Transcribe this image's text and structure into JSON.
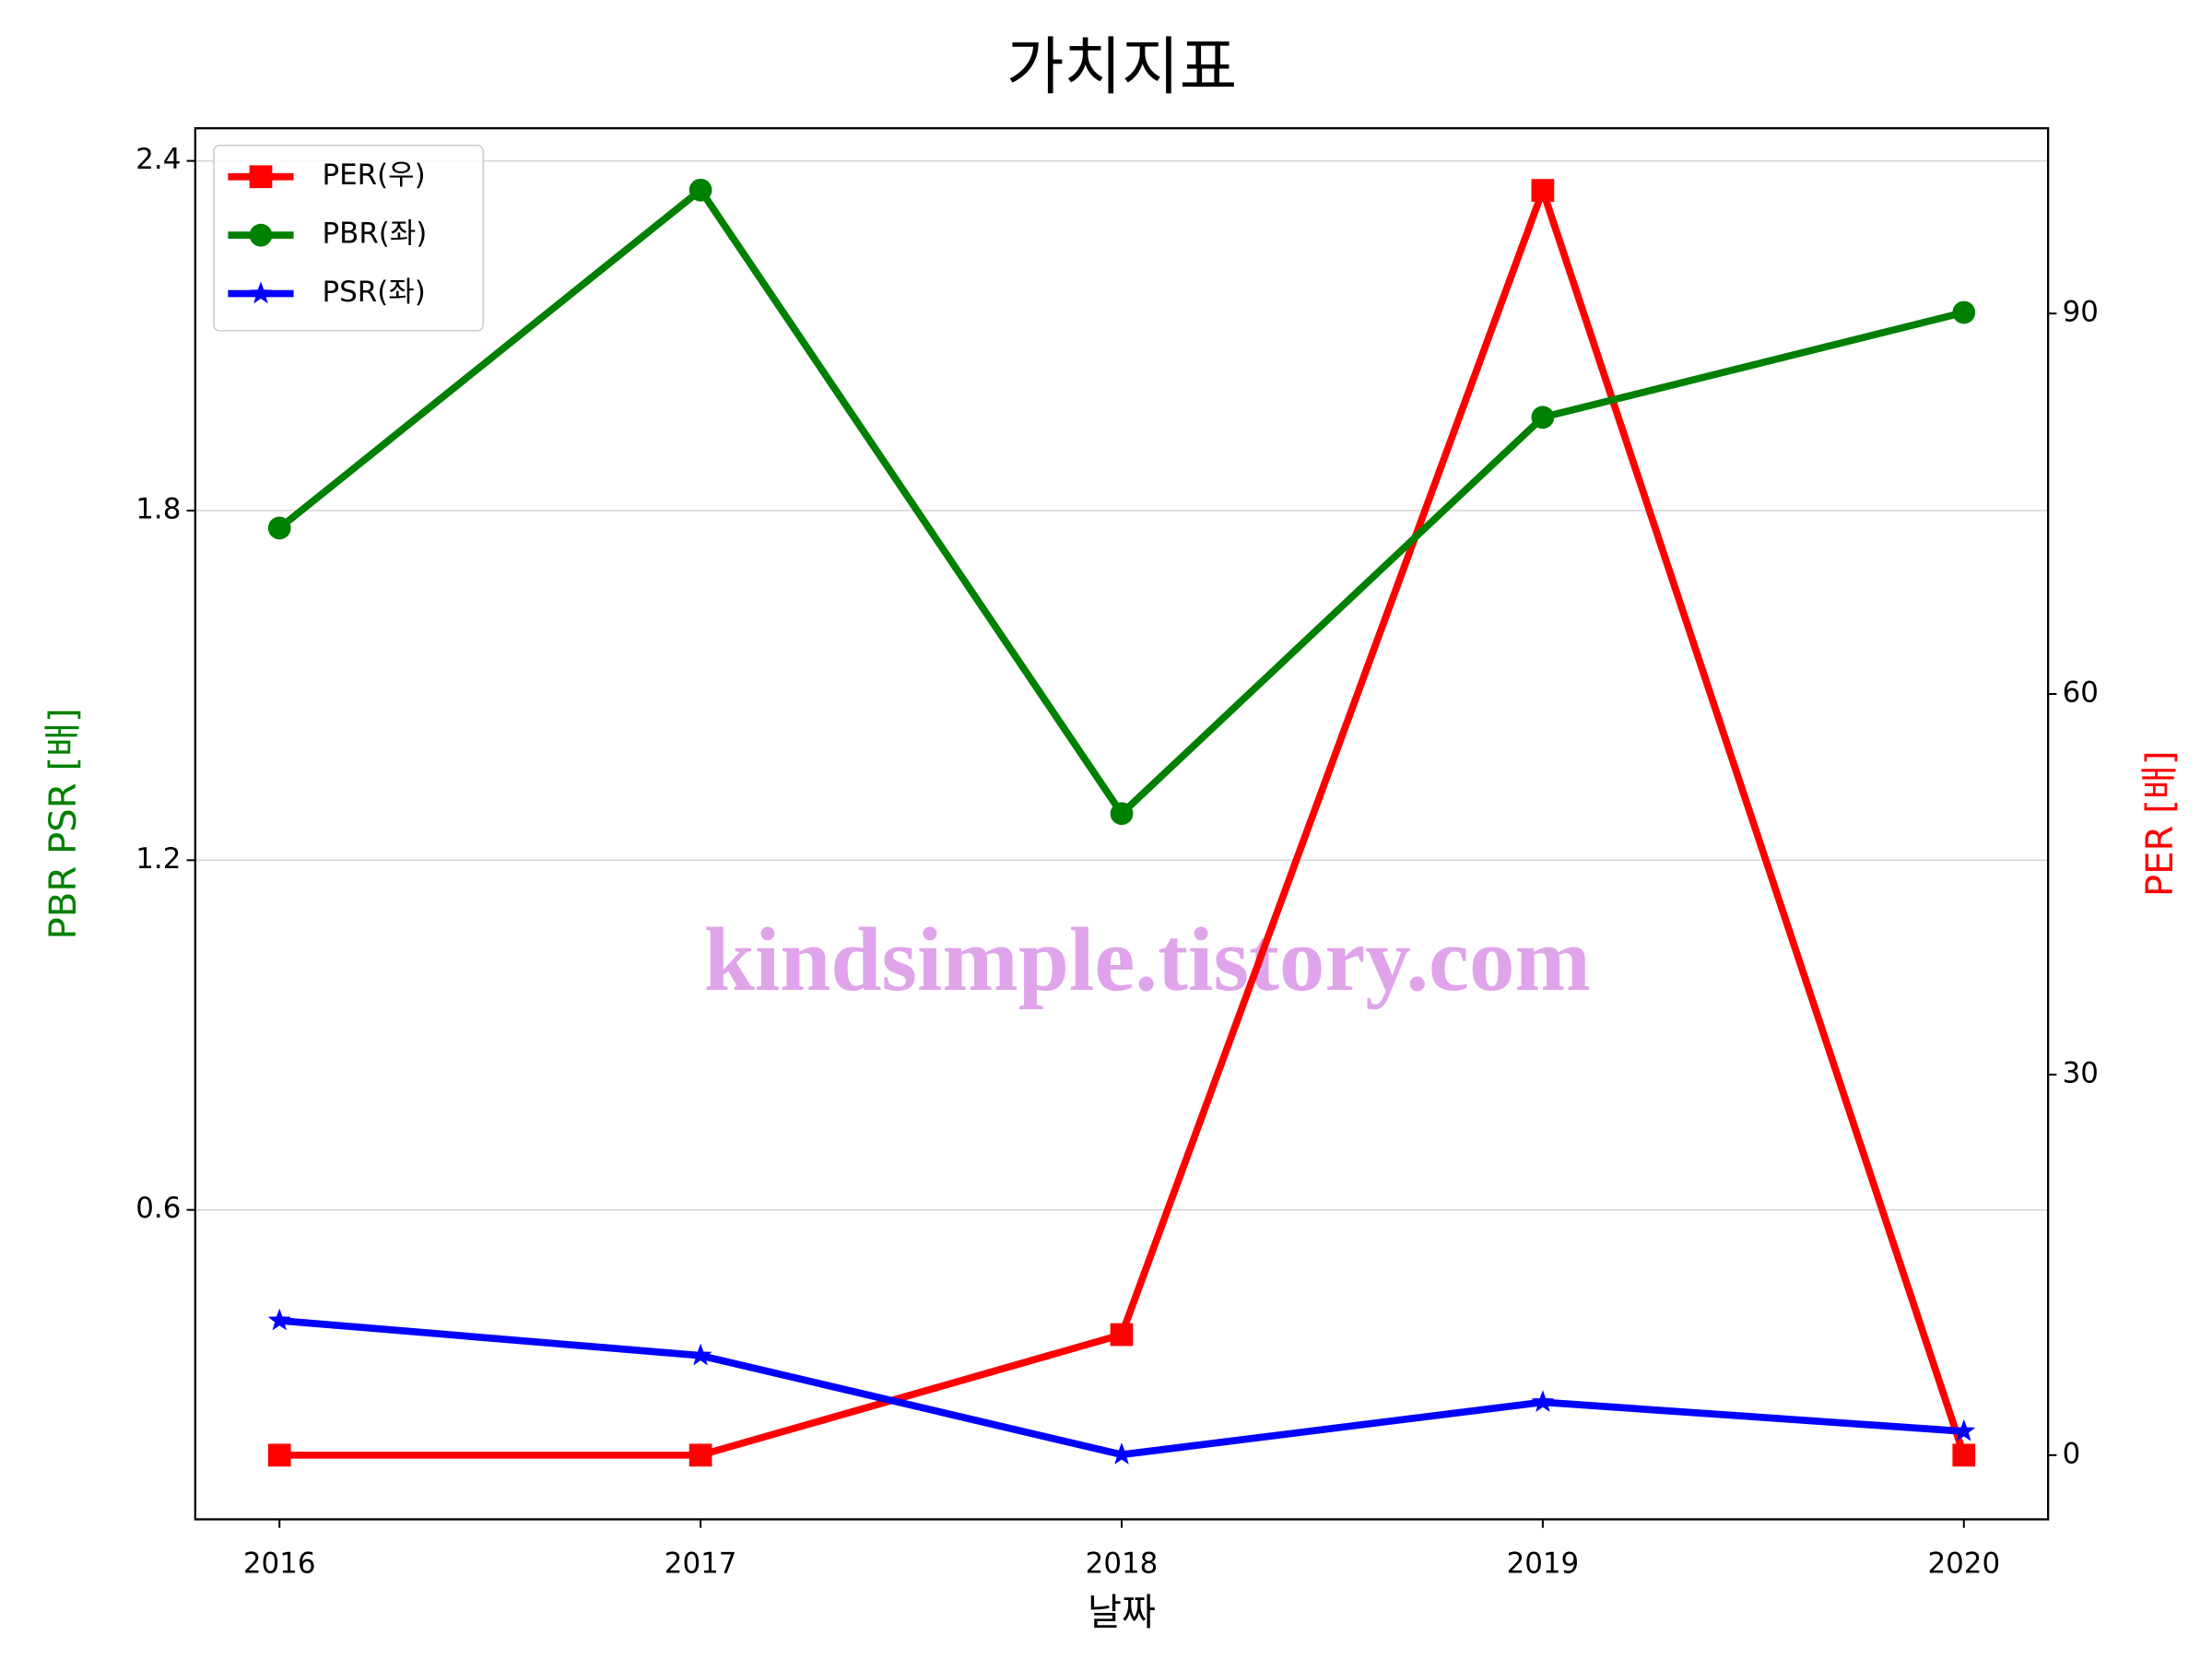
{
  "chart_data": {
    "type": "line",
    "title": "가치지표",
    "xlabel": "날짜",
    "ylabel": "PBR PSR [배]",
    "y2label": "PER [배]",
    "annotation": "kindsimple.tistory.com",
    "x": [
      2016,
      2017,
      2018,
      2019,
      2020
    ],
    "xlim": [
      2015.8,
      2020.2
    ],
    "xticks": [
      2016,
      2017,
      2018,
      2019,
      2020
    ],
    "ylim": [
      0.069,
      2.456
    ],
    "yticks": [
      0.6,
      1.2,
      1.8,
      2.4
    ],
    "y2lim": [
      -5.06,
      104.6
    ],
    "y2ticks": [
      0,
      30,
      60,
      90
    ],
    "grid": true,
    "legend": "upper left",
    "series": [
      {
        "name": "PER(우)",
        "color": "#ff0000",
        "marker": "square",
        "axis": "y2",
        "values": [
          0,
          0,
          9.5,
          99.7,
          0
        ]
      },
      {
        "name": "PBR(좌)",
        "color": "#008000",
        "marker": "circle",
        "values": [
          1.77,
          2.35,
          1.28,
          1.96,
          2.14
        ]
      },
      {
        "name": "PSR(좌)",
        "color": "#0000ff",
        "marker": "star",
        "values": [
          0.41,
          0.35,
          0.18,
          0.27,
          0.22
        ]
      }
    ]
  }
}
